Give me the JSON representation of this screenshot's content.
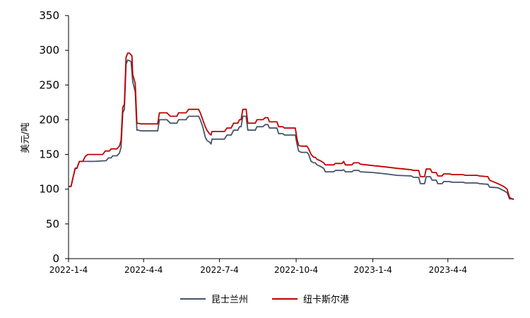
{
  "chart_data": {
    "type": "line",
    "ylabel": "美元/吨",
    "ylim": [
      0,
      350
    ],
    "yticks": [
      0,
      50,
      100,
      150,
      200,
      250,
      300,
      350
    ],
    "xlim": [
      "2022-01-04",
      "2023-06-22"
    ],
    "xtick_labels": [
      {
        "date": "2022-01-04",
        "label": "2022-1-4"
      },
      {
        "date": "2022-04-04",
        "label": "2022-4-4"
      },
      {
        "date": "2022-07-04",
        "label": "2022-7-4"
      },
      {
        "date": "2022-10-04",
        "label": "2022-10-4"
      },
      {
        "date": "2023-01-04",
        "label": "2023-1-4"
      },
      {
        "date": "2023-04-04",
        "label": "2023-4-4"
      }
    ],
    "grid": false,
    "legend_position": "bottom",
    "series": [
      {
        "name": "昆士兰州",
        "color": "#44546a",
        "points": [
          [
            "2022-01-04",
            104
          ],
          [
            "2022-01-07",
            104
          ],
          [
            "2022-01-10",
            120
          ],
          [
            "2022-01-12",
            130
          ],
          [
            "2022-01-14",
            130
          ],
          [
            "2022-01-17",
            140
          ],
          [
            "2022-01-21",
            140
          ],
          [
            "2022-02-04",
            140
          ],
          [
            "2022-02-18",
            141
          ],
          [
            "2022-02-21",
            145
          ],
          [
            "2022-02-24",
            145
          ],
          [
            "2022-02-26",
            148
          ],
          [
            "2022-03-03",
            148
          ],
          [
            "2022-03-06",
            152
          ],
          [
            "2022-03-08",
            160
          ],
          [
            "2022-03-10",
            210
          ],
          [
            "2022-03-12",
            215
          ],
          [
            "2022-03-14",
            280
          ],
          [
            "2022-03-16",
            286
          ],
          [
            "2022-03-18",
            285
          ],
          [
            "2022-03-20",
            284
          ],
          [
            "2022-03-22",
            255
          ],
          [
            "2022-03-25",
            240
          ],
          [
            "2022-03-27",
            185
          ],
          [
            "2022-03-29",
            185
          ],
          [
            "2022-04-01",
            184
          ],
          [
            "2022-04-21",
            184
          ],
          [
            "2022-04-23",
            200
          ],
          [
            "2022-05-02",
            200
          ],
          [
            "2022-05-06",
            195
          ],
          [
            "2022-05-14",
            195
          ],
          [
            "2022-05-16",
            200
          ],
          [
            "2022-05-25",
            200
          ],
          [
            "2022-05-28",
            205
          ],
          [
            "2022-06-09",
            205
          ],
          [
            "2022-06-11",
            200
          ],
          [
            "2022-06-14",
            190
          ],
          [
            "2022-06-17",
            175
          ],
          [
            "2022-06-19",
            170
          ],
          [
            "2022-06-22",
            168
          ],
          [
            "2022-06-24",
            165
          ],
          [
            "2022-06-25",
            172
          ],
          [
            "2022-07-10",
            172
          ],
          [
            "2022-07-13",
            178
          ],
          [
            "2022-07-18",
            178
          ],
          [
            "2022-07-21",
            185
          ],
          [
            "2022-07-26",
            185
          ],
          [
            "2022-07-28",
            190
          ],
          [
            "2022-07-30",
            190
          ],
          [
            "2022-08-01",
            205
          ],
          [
            "2022-08-05",
            205
          ],
          [
            "2022-08-07",
            185
          ],
          [
            "2022-08-16",
            185
          ],
          [
            "2022-08-18",
            190
          ],
          [
            "2022-08-25",
            190
          ],
          [
            "2022-08-28",
            193
          ],
          [
            "2022-08-31",
            193
          ],
          [
            "2022-09-02",
            188
          ],
          [
            "2022-09-11",
            188
          ],
          [
            "2022-09-13",
            180
          ],
          [
            "2022-09-18",
            180
          ],
          [
            "2022-09-20",
            178
          ],
          [
            "2022-10-03",
            178
          ],
          [
            "2022-10-05",
            165
          ],
          [
            "2022-10-07",
            155
          ],
          [
            "2022-10-10",
            153
          ],
          [
            "2022-10-17",
            153
          ],
          [
            "2022-10-19",
            150
          ],
          [
            "2022-10-22",
            140
          ],
          [
            "2022-10-25",
            138
          ],
          [
            "2022-10-27",
            138
          ],
          [
            "2022-10-29",
            135
          ],
          [
            "2022-11-02",
            133
          ],
          [
            "2022-11-06",
            130
          ],
          [
            "2022-11-08",
            125
          ],
          [
            "2022-11-18",
            125
          ],
          [
            "2022-11-20",
            127
          ],
          [
            "2022-11-28",
            127
          ],
          [
            "2022-11-30",
            128
          ],
          [
            "2022-12-02",
            125
          ],
          [
            "2022-12-10",
            125
          ],
          [
            "2022-12-12",
            127
          ],
          [
            "2022-12-18",
            127
          ],
          [
            "2022-12-20",
            125
          ],
          [
            "2023-01-04",
            124
          ],
          [
            "2023-01-20",
            122
          ],
          [
            "2023-02-02",
            120
          ],
          [
            "2023-02-19",
            119
          ],
          [
            "2023-02-22",
            117
          ],
          [
            "2023-02-28",
            117
          ],
          [
            "2023-03-02",
            108
          ],
          [
            "2023-03-07",
            108
          ],
          [
            "2023-03-09",
            118
          ],
          [
            "2023-03-14",
            118
          ],
          [
            "2023-03-16",
            113
          ],
          [
            "2023-03-21",
            113
          ],
          [
            "2023-03-23",
            108
          ],
          [
            "2023-03-28",
            108
          ],
          [
            "2023-03-30",
            111
          ],
          [
            "2023-04-06",
            111
          ],
          [
            "2023-04-09",
            110
          ],
          [
            "2023-04-22",
            110
          ],
          [
            "2023-04-25",
            109
          ],
          [
            "2023-05-09",
            109
          ],
          [
            "2023-05-12",
            108
          ],
          [
            "2023-05-22",
            107
          ],
          [
            "2023-05-24",
            103
          ],
          [
            "2023-06-03",
            102
          ],
          [
            "2023-06-10",
            98
          ],
          [
            "2023-06-14",
            95
          ],
          [
            "2023-06-17",
            86
          ],
          [
            "2023-06-22",
            86
          ]
        ]
      },
      {
        "name": "纽卡斯尔港",
        "color": "#c00000",
        "points": [
          [
            "2022-01-04",
            104
          ],
          [
            "2022-01-07",
            104
          ],
          [
            "2022-01-10",
            120
          ],
          [
            "2022-01-12",
            130
          ],
          [
            "2022-01-14",
            130
          ],
          [
            "2022-01-17",
            140
          ],
          [
            "2022-01-21",
            140
          ],
          [
            "2022-01-24",
            147
          ],
          [
            "2022-01-27",
            150
          ],
          [
            "2022-02-14",
            150
          ],
          [
            "2022-02-17",
            155
          ],
          [
            "2022-02-22",
            155
          ],
          [
            "2022-02-24",
            158
          ],
          [
            "2022-03-03",
            158
          ],
          [
            "2022-03-06",
            162
          ],
          [
            "2022-03-08",
            170
          ],
          [
            "2022-03-10",
            218
          ],
          [
            "2022-03-12",
            222
          ],
          [
            "2022-03-14",
            290
          ],
          [
            "2022-03-16",
            296
          ],
          [
            "2022-03-18",
            296
          ],
          [
            "2022-03-21",
            292
          ],
          [
            "2022-03-22",
            265
          ],
          [
            "2022-03-25",
            252
          ],
          [
            "2022-03-27",
            195
          ],
          [
            "2022-04-01",
            194
          ],
          [
            "2022-04-21",
            194
          ],
          [
            "2022-04-23",
            210
          ],
          [
            "2022-05-02",
            210
          ],
          [
            "2022-05-06",
            205
          ],
          [
            "2022-05-14",
            205
          ],
          [
            "2022-05-16",
            210
          ],
          [
            "2022-05-25",
            210
          ],
          [
            "2022-05-28",
            215
          ],
          [
            "2022-06-09",
            215
          ],
          [
            "2022-06-11",
            210
          ],
          [
            "2022-06-14",
            200
          ],
          [
            "2022-06-17",
            190
          ],
          [
            "2022-06-19",
            185
          ],
          [
            "2022-06-22",
            180
          ],
          [
            "2022-06-24",
            178
          ],
          [
            "2022-06-25",
            183
          ],
          [
            "2022-07-10",
            183
          ],
          [
            "2022-07-13",
            188
          ],
          [
            "2022-07-18",
            188
          ],
          [
            "2022-07-21",
            195
          ],
          [
            "2022-07-26",
            195
          ],
          [
            "2022-07-28",
            200
          ],
          [
            "2022-07-30",
            200
          ],
          [
            "2022-08-01",
            215
          ],
          [
            "2022-08-05",
            215
          ],
          [
            "2022-08-07",
            195
          ],
          [
            "2022-08-16",
            195
          ],
          [
            "2022-08-18",
            200
          ],
          [
            "2022-08-25",
            200
          ],
          [
            "2022-08-28",
            203
          ],
          [
            "2022-08-31",
            203
          ],
          [
            "2022-09-02",
            197
          ],
          [
            "2022-09-11",
            197
          ],
          [
            "2022-09-13",
            190
          ],
          [
            "2022-09-18",
            190
          ],
          [
            "2022-09-20",
            188
          ],
          [
            "2022-10-03",
            188
          ],
          [
            "2022-10-05",
            172
          ],
          [
            "2022-10-07",
            163
          ],
          [
            "2022-10-10",
            162
          ],
          [
            "2022-10-17",
            162
          ],
          [
            "2022-10-19",
            158
          ],
          [
            "2022-10-22",
            150
          ],
          [
            "2022-10-25",
            146
          ],
          [
            "2022-10-27",
            146
          ],
          [
            "2022-10-29",
            143
          ],
          [
            "2022-11-02",
            141
          ],
          [
            "2022-11-06",
            138
          ],
          [
            "2022-11-08",
            135
          ],
          [
            "2022-11-18",
            135
          ],
          [
            "2022-11-20",
            137
          ],
          [
            "2022-11-28",
            137
          ],
          [
            "2022-11-30",
            140
          ],
          [
            "2022-12-02",
            135
          ],
          [
            "2022-12-10",
            135
          ],
          [
            "2022-12-12",
            138
          ],
          [
            "2022-12-18",
            138
          ],
          [
            "2022-12-20",
            136
          ],
          [
            "2023-01-04",
            134
          ],
          [
            "2023-01-20",
            132
          ],
          [
            "2023-02-02",
            130
          ],
          [
            "2023-02-19",
            128
          ],
          [
            "2023-02-22",
            127
          ],
          [
            "2023-02-28",
            127
          ],
          [
            "2023-03-02",
            118
          ],
          [
            "2023-03-07",
            118
          ],
          [
            "2023-03-09",
            129
          ],
          [
            "2023-03-14",
            129
          ],
          [
            "2023-03-16",
            124
          ],
          [
            "2023-03-21",
            124
          ],
          [
            "2023-03-23",
            119
          ],
          [
            "2023-03-28",
            119
          ],
          [
            "2023-03-30",
            122
          ],
          [
            "2023-04-06",
            122
          ],
          [
            "2023-04-09",
            121
          ],
          [
            "2023-04-22",
            121
          ],
          [
            "2023-04-25",
            120
          ],
          [
            "2023-05-09",
            120
          ],
          [
            "2023-05-12",
            119
          ],
          [
            "2023-05-22",
            118
          ],
          [
            "2023-05-24",
            113
          ],
          [
            "2023-06-03",
            108
          ],
          [
            "2023-06-10",
            104
          ],
          [
            "2023-06-14",
            100
          ],
          [
            "2023-06-17",
            88
          ],
          [
            "2023-06-22",
            85
          ]
        ]
      }
    ]
  }
}
